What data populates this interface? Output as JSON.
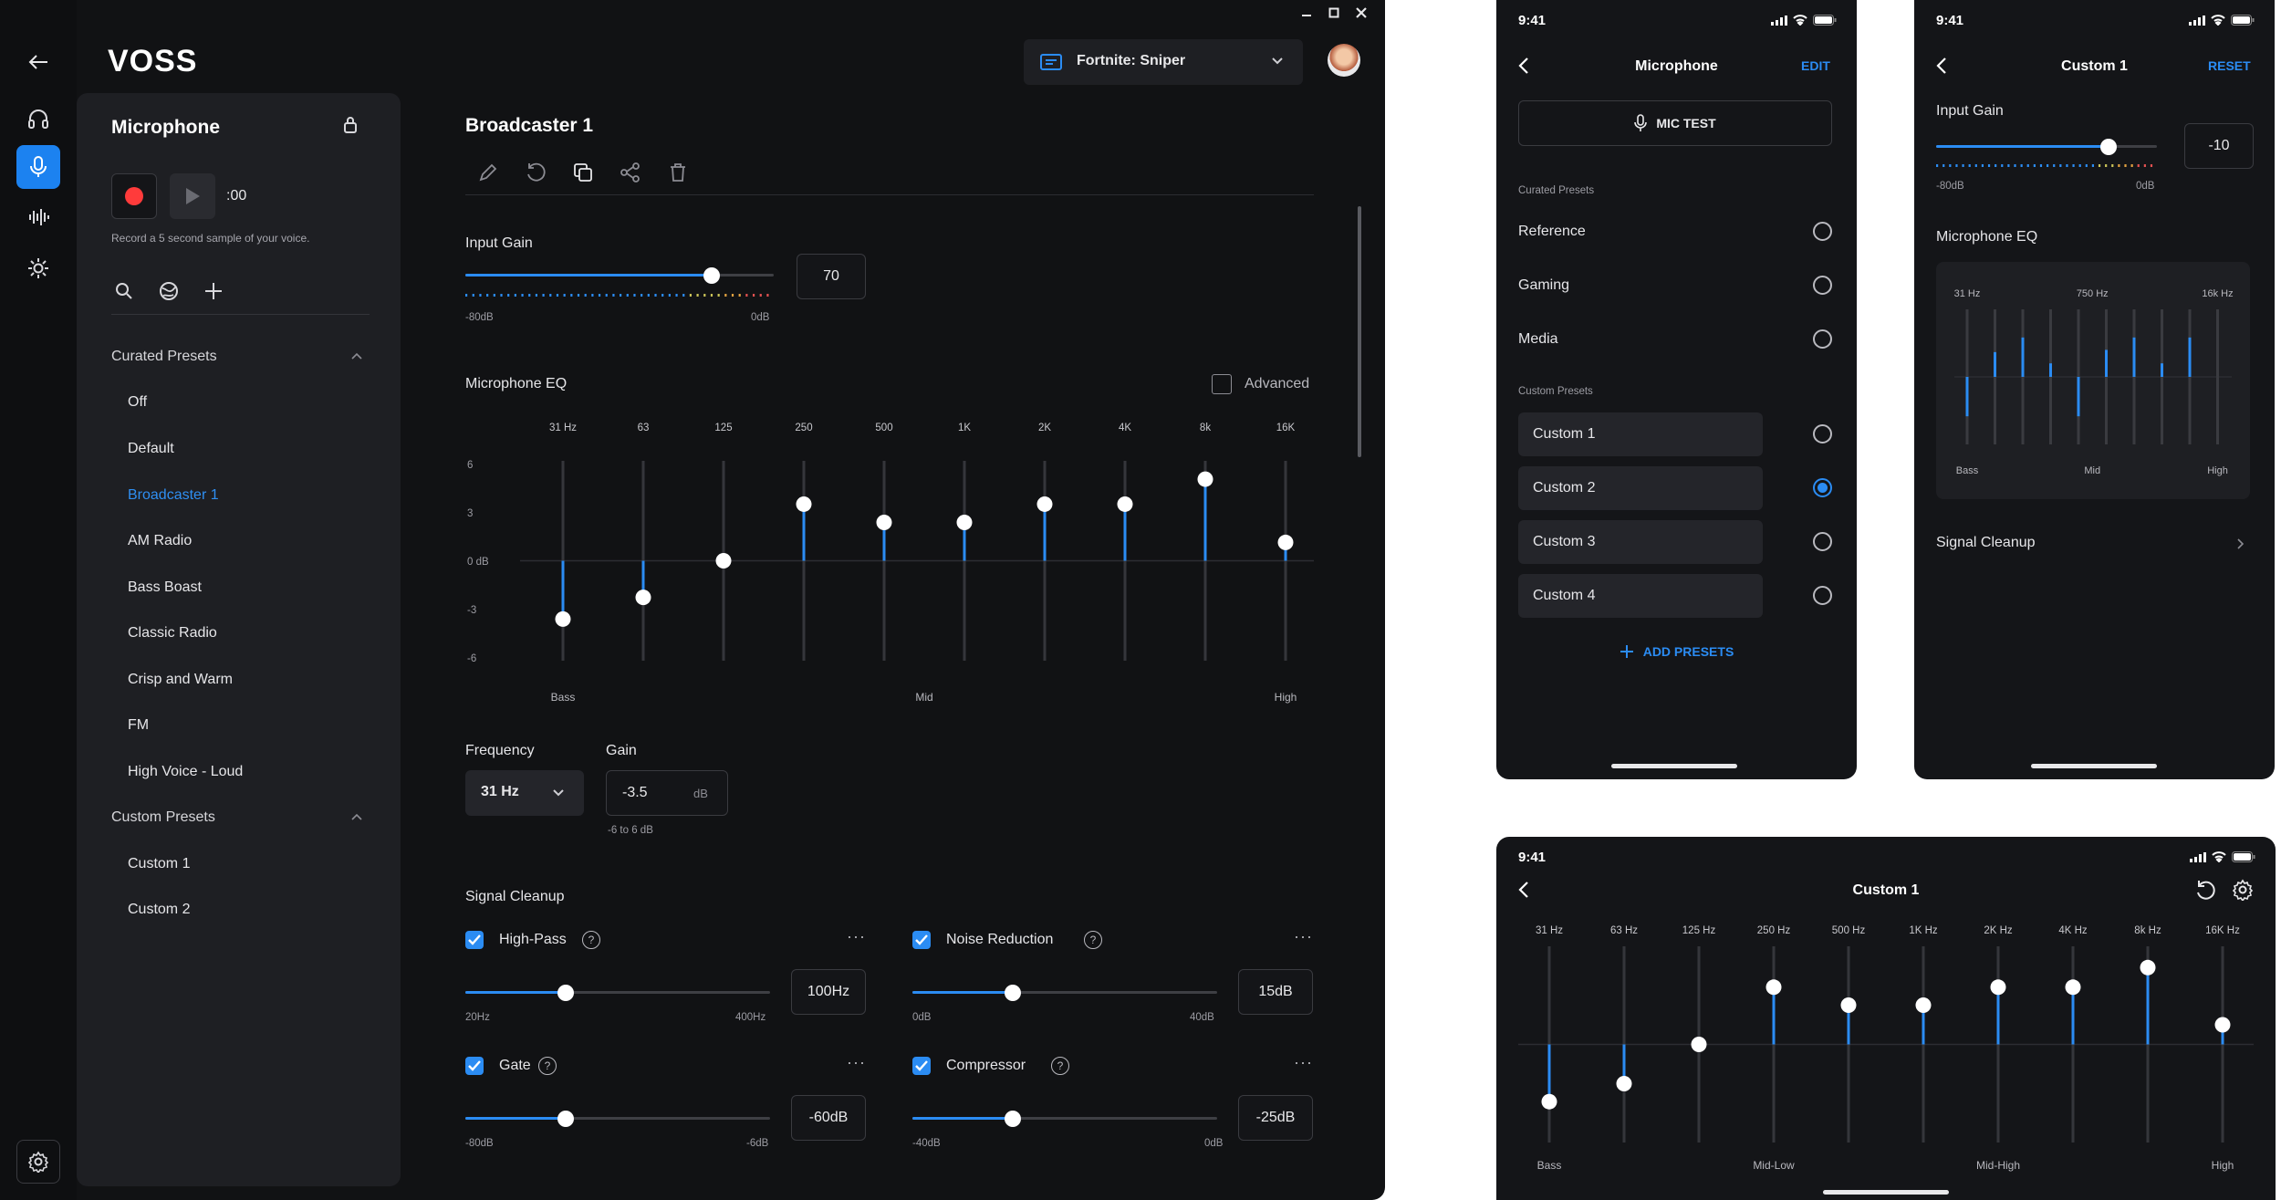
{
  "app": {
    "brand": "VOSS",
    "game_profile": "Fortnite: Sniper"
  },
  "colors": {
    "accent": "#2b8cf3",
    "background": "#111214",
    "panel": "#1e1f23",
    "record": "#ff3b3b"
  },
  "sidebar": {
    "icons": [
      "back-arrow-icon",
      "headphones-icon",
      "microphone-icon",
      "waveform-icon",
      "brightness-icon",
      "settings-icon"
    ]
  },
  "panel": {
    "title": "Microphone",
    "timer": ":00",
    "hint": "Record a 5 second sample of your voice.",
    "curated_label": "Curated Presets",
    "curated": [
      "Off",
      "Default",
      "Broadcaster 1",
      "AM Radio",
      "Bass Boast",
      "Classic Radio",
      "Crisp and Warm",
      "FM",
      "High Voice - Loud"
    ],
    "selected": "Broadcaster 1",
    "custom_label": "Custom Presets",
    "custom": [
      "Custom 1",
      "Custom 2"
    ]
  },
  "editor": {
    "title": "Broadcaster 1",
    "input_gain": {
      "label": "Input Gain",
      "value": "70",
      "min": "-80dB",
      "max": "0dB",
      "level": 0.8
    },
    "eq": {
      "label": "Microphone EQ",
      "advanced_label": "Advanced",
      "bands": [
        "31 Hz",
        "63",
        "125",
        "250",
        "500",
        "1K",
        "2K",
        "4K",
        "8k",
        "16K"
      ],
      "gains": [
        -3.5,
        -2.2,
        0,
        3.4,
        2.3,
        2.3,
        3.4,
        3.4,
        4.9,
        1.1
      ],
      "y_ticks": [
        "6",
        "3",
        "0 dB",
        "-3",
        "-6"
      ],
      "ranges": [
        "Bass",
        "Mid",
        "High"
      ]
    },
    "frequency": {
      "label": "Frequency",
      "value": "31 Hz"
    },
    "gain": {
      "label": "Gain",
      "value": "-3.5",
      "unit": "dB",
      "hint": "-6 to 6 dB"
    },
    "signal_cleanup": {
      "label": "Signal Cleanup",
      "items": [
        {
          "name": "High-Pass",
          "value": "100Hz",
          "min": "20Hz",
          "max": "400Hz",
          "level": 0.33
        },
        {
          "name": "Noise Reduction",
          "value": "15dB",
          "min": "0dB",
          "max": "40dB",
          "level": 0.33
        },
        {
          "name": "Gate",
          "value": "-60dB",
          "min": "-80dB",
          "max": "-6dB",
          "level": 0.33
        },
        {
          "name": "Compressor",
          "value": "-25dB",
          "min": "-40dB",
          "max": "0dB",
          "level": 0.33
        }
      ]
    }
  },
  "mobile1": {
    "time": "9:41",
    "title": "Microphone",
    "edit": "EDIT",
    "mic_test": "MIC TEST",
    "curated_label": "Curated Presets",
    "curated": [
      "Reference",
      "Gaming",
      "Media"
    ],
    "custom_label": "Custom Presets",
    "custom": [
      "Custom 1",
      "Custom 2",
      "Custom 3",
      "Custom 4"
    ],
    "selected": "Custom 2",
    "add": "ADD PRESETS"
  },
  "mobile2": {
    "time": "9:41",
    "title": "Custom 1",
    "reset": "RESET",
    "input_gain": "Input Gain",
    "gain_value": "-10",
    "min": "-80dB",
    "max": "0dB",
    "level": 0.78,
    "eq_label": "Microphone EQ",
    "eq_top": [
      "31 Hz",
      "750 Hz",
      "16k Hz"
    ],
    "eq_bottom": [
      "Bass",
      "Mid",
      "High"
    ],
    "eq_gains": [
      -3.5,
      2.2,
      3.5,
      1.2,
      -3.5,
      2.4,
      3.5,
      1.2,
      3.5,
      0
    ],
    "cleanup": "Signal Cleanup"
  },
  "mobile3": {
    "time": "9:41",
    "title": "Custom 1",
    "bands": [
      "31 Hz",
      "63 Hz",
      "125 Hz",
      "250 Hz",
      "500 Hz",
      "1K Hz",
      "2K Hz",
      "4K Hz",
      "8k Hz",
      "16K Hz"
    ],
    "gains": [
      -3.5,
      -2.4,
      0,
      3.5,
      2.4,
      2.4,
      3.5,
      3.5,
      4.7,
      1.2
    ],
    "ranges": [
      "Bass",
      "Mid-Low",
      "Mid-High",
      "High"
    ]
  }
}
